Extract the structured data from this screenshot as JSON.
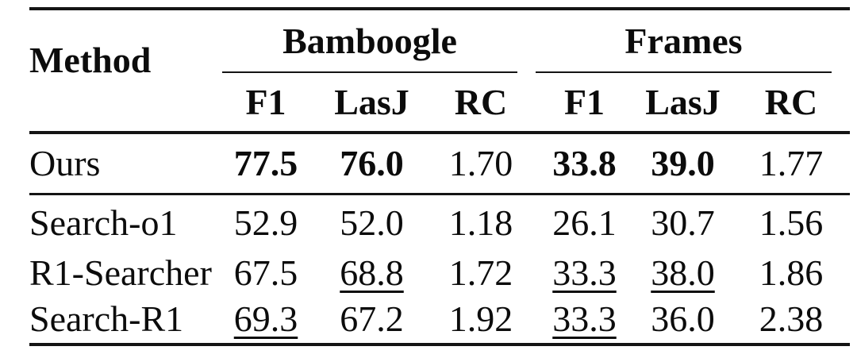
{
  "table": {
    "method_header": "Method",
    "groups": [
      {
        "label": "Bamboogle",
        "metrics": [
          "F1",
          "LasJ",
          "RC"
        ]
      },
      {
        "label": "Frames",
        "metrics": [
          "F1",
          "LasJ",
          "RC"
        ]
      }
    ],
    "subheaders": [
      "F1",
      "LasJ",
      "RC",
      "F1",
      "LasJ",
      "RC"
    ],
    "rows": [
      {
        "method": "Ours",
        "cells": [
          {
            "v": "77.5",
            "style": "bold"
          },
          {
            "v": "76.0",
            "style": "bold"
          },
          {
            "v": "1.70",
            "style": "plain"
          },
          {
            "v": "33.8",
            "style": "bold"
          },
          {
            "v": "39.0",
            "style": "bold"
          },
          {
            "v": "1.77",
            "style": "plain"
          }
        ]
      },
      {
        "method": "Search-o1",
        "cells": [
          {
            "v": "52.9",
            "style": "plain"
          },
          {
            "v": "52.0",
            "style": "plain"
          },
          {
            "v": "1.18",
            "style": "plain"
          },
          {
            "v": "26.1",
            "style": "plain"
          },
          {
            "v": "30.7",
            "style": "plain"
          },
          {
            "v": "1.56",
            "style": "plain"
          }
        ]
      },
      {
        "method": "R1-Searcher",
        "cells": [
          {
            "v": "67.5",
            "style": "plain"
          },
          {
            "v": "68.8",
            "style": "underline"
          },
          {
            "v": "1.72",
            "style": "plain"
          },
          {
            "v": "33.3",
            "style": "underline"
          },
          {
            "v": "38.0",
            "style": "underline"
          },
          {
            "v": "1.86",
            "style": "plain"
          }
        ]
      },
      {
        "method": "Search-R1",
        "cells": [
          {
            "v": "69.3",
            "style": "underline"
          },
          {
            "v": "67.2",
            "style": "plain"
          },
          {
            "v": "1.92",
            "style": "plain"
          },
          {
            "v": "33.3",
            "style": "underline"
          },
          {
            "v": "36.0",
            "style": "plain"
          },
          {
            "v": "2.38",
            "style": "plain"
          }
        ]
      }
    ],
    "style_colors": {
      "text": "#0c0c0c",
      "rule": "#141414",
      "background": "#ffffff"
    }
  }
}
